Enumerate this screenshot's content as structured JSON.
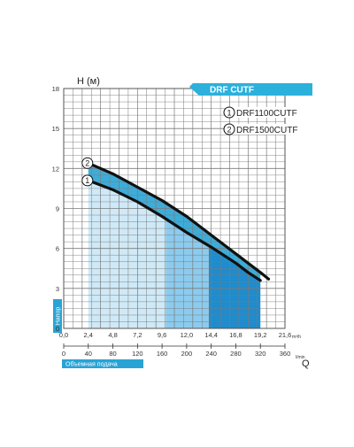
{
  "chart_data": {
    "type": "line",
    "banner": "DRF CUTF",
    "ylabel": "H (м)",
    "ylabel_side": "Напор",
    "xlabel_side": "Объемная подача",
    "x_top_unit": "m³/h",
    "x_bottom_unit": "l/min",
    "x_bottom_label": "Q",
    "xlim": [
      0,
      21.6
    ],
    "ylim": [
      0,
      18
    ],
    "x_ticks": [
      "0,0",
      "2,4",
      "4,8",
      "7,2",
      "9,6",
      "12,0",
      "14,4",
      "16,8",
      "19,2",
      "21,6"
    ],
    "y_ticks": [
      "0",
      "3",
      "6",
      "9",
      "12",
      "15",
      "18"
    ],
    "q_ticks": [
      "0",
      "40",
      "80",
      "120",
      "160",
      "200",
      "240",
      "280",
      "320",
      "360"
    ],
    "series": [
      {
        "name": "DRF1100CUTF",
        "badge": "1",
        "x": [
          2.4,
          4.8,
          7.2,
          9.6,
          12.0,
          14.4,
          16.8,
          18.0,
          19.2
        ],
        "y": [
          11.1,
          10.4,
          9.5,
          8.4,
          7.2,
          6.1,
          4.9,
          4.2,
          3.6
        ]
      },
      {
        "name": "DRF1500CUTF",
        "badge": "2",
        "x": [
          2.4,
          4.8,
          7.2,
          9.6,
          12.0,
          14.4,
          16.8,
          19.2,
          20.0
        ],
        "y": [
          12.4,
          11.6,
          10.6,
          9.6,
          8.4,
          7.0,
          5.6,
          4.2,
          3.7
        ]
      }
    ],
    "colors": {
      "accent": "#29a3d4",
      "banner": "#2cb0dc",
      "fill_light": "#cfe9f7",
      "fill_mid": "#8ccbee",
      "fill_dark": "#1f8ccd",
      "curve": "#111111",
      "grid": "#7a7a7a"
    }
  }
}
